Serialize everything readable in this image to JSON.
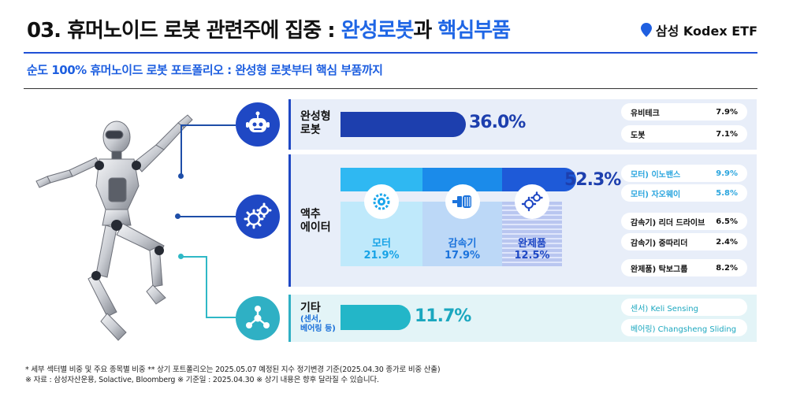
{
  "header": {
    "title_prefix": "03. 휴머노이드 로봇 관련주에 집중 : ",
    "title_hl1": "완성로봇",
    "title_mid": "과 ",
    "title_hl2": "핵심부품",
    "brand": "삼성 Kodex ETF",
    "subtitle": "순도 100% 휴머노이드 로봇 포트폴리오 : 완성형 로봇부터 핵심 부품까지"
  },
  "colors": {
    "navy": "#1d3fae",
    "blue": "#1f66e5",
    "teal": "#23b6c8",
    "light_blue": "#2fb8f2"
  },
  "sectors": {
    "complete": {
      "label_line1": "완성형",
      "label_line2": "로봇",
      "percent_text": "36.0%",
      "value": 36.0,
      "icon": "robot-head-icon",
      "holdings": [
        {
          "name": "유비테크",
          "weight": "7.9%"
        },
        {
          "name": "도봇",
          "weight": "7.1%"
        }
      ]
    },
    "actuator": {
      "label_line1": "액추",
      "label_line2": "에이터",
      "percent_text": "52.3%",
      "value": 52.3,
      "icon": "gears-icon",
      "components": [
        {
          "name": "모터",
          "percent": "21.9%",
          "value": 21.9,
          "icon": "motor-gear-icon"
        },
        {
          "name": "감속기",
          "percent": "17.9%",
          "value": 17.9,
          "icon": "reducer-icon"
        },
        {
          "name": "완제품",
          "percent": "12.5%",
          "value": 12.5,
          "icon": "gear-assembly-icon"
        }
      ],
      "holdings": [
        {
          "name": "모터) 이노밴스",
          "weight": "9.9%"
        },
        {
          "name": "모터) 자오웨이",
          "weight": "5.8%"
        },
        {
          "name": "감속기) 리더 드라이브",
          "weight": "6.5%"
        },
        {
          "name": "감속기) 중따리더",
          "weight": "2.4%"
        },
        {
          "name": "완제품) 탁보그룹",
          "weight": "8.2%"
        }
      ]
    },
    "other": {
      "label_line1": "기타",
      "label_small1": "(센서,",
      "label_small2": "베어링 등)",
      "percent_text": "11.7%",
      "value": 11.7,
      "icon": "hub-nodes-icon",
      "holdings": [
        {
          "name": "센서) Keli Sensing"
        },
        {
          "name": "베어링) Changsheng Sliding"
        }
      ]
    }
  },
  "footnotes": {
    "line1": "* 세부 섹터별 비중 및 주요 종목별 비중 ** 상기 포트폴리오는 2025.05.07 예정된 지수 정기변경 기준(2025.04.30 종가로 비중 산출)",
    "line2": "※ 자료 : 삼성자산운용, Solactive, Bloomberg ※ 기준일 : 2025.04.30 ※ 상기 내용은 향후 달라질 수 있습니다."
  }
}
